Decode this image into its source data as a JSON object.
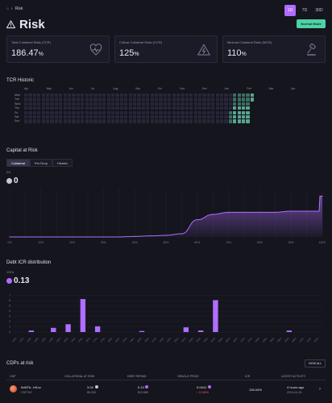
{
  "breadcrumb": {
    "label": "Risk"
  },
  "page": {
    "title": "Risk"
  },
  "time_range": {
    "options": [
      "1D",
      "7D",
      "30D"
    ],
    "selected": "1D"
  },
  "mode_badge": "Normal Mode",
  "stats": [
    {
      "label": "Total Collateral Ratio (TCR)",
      "value": "186.47",
      "unit": "%",
      "icon": "heart-pulse-icon"
    },
    {
      "label": "Critical Collateral Ratio (CCR)",
      "value": "125",
      "unit": "%",
      "icon": "warning-triangle-icon"
    },
    {
      "label": "Minimal Collateral Ratio (MCR)",
      "value": "110",
      "unit": "%",
      "icon": "gavel-icon"
    }
  ],
  "tcr_historic": {
    "title": "TCR Historic",
    "months": [
      "Apr",
      "May",
      "Jun",
      "Jul",
      "Aug",
      "Sep",
      "Oct",
      "Nov",
      "Dec",
      "Jan",
      "Feb",
      "Mar",
      "Apr"
    ],
    "days": [
      "Mon",
      "Tue",
      "Wed",
      "Thu",
      "Fri",
      "Sat",
      "Sun"
    ]
  },
  "capital_at_risk": {
    "title": "Capital at Risk",
    "tabs": [
      "Collateral",
      "Per Drop",
      "Historic"
    ],
    "selected_tab": "Collateral",
    "axis_note": "0%",
    "value": "0",
    "badge_color": "#c9c9d6"
  },
  "debt_icr": {
    "title": "Debt ICR distribution",
    "axis_note": "125%",
    "value": "0.13",
    "badge_color": "#b06dff"
  },
  "chart_data": [
    {
      "type": "area",
      "title": "Capital at Risk",
      "x": [
        "0%",
        "5%",
        "10%",
        "15%",
        "20%",
        "25%",
        "30%",
        "35%",
        "40%",
        "45%",
        "50%",
        "55%",
        "60%",
        "65%",
        "70%",
        "75%",
        "80%",
        "85%",
        "90%",
        "95%",
        "100%"
      ],
      "series": [
        {
          "values": [
            0,
            0,
            0,
            0,
            0,
            0,
            0,
            0,
            0.5,
            1,
            1.5,
            3,
            16,
            21,
            23,
            23,
            23,
            23,
            24,
            24,
            38
          ]
        }
      ],
      "ylim": [
        0,
        45
      ],
      "grid": true
    },
    {
      "type": "bar",
      "title": "Debt ICR distribution",
      "categories": [
        "115%",
        "120%",
        "125%",
        "130%",
        "135%",
        "140%",
        "145%",
        "150%",
        "155%",
        "160%",
        "165%",
        "170%",
        "175%",
        "180%",
        "185%",
        "190%",
        "195%",
        "200%",
        "205%",
        "210%",
        "215%",
        "220%",
        "225%",
        "230%",
        "235%",
        "240%",
        "245%",
        "250%",
        "255%",
        "260%",
        "265%",
        "270%",
        "275%",
        "280%",
        "285%",
        "290%",
        "295%",
        "300%",
        "305%",
        "310%",
        "315%",
        "320%"
      ],
      "values": [
        0,
        0,
        0.3,
        0,
        0,
        0.8,
        0,
        1.5,
        0,
        6.3,
        0,
        1.1,
        0,
        0,
        0,
        0,
        0,
        0.2,
        0,
        0,
        0,
        0,
        0,
        0.9,
        0,
        0.3,
        0,
        6.1,
        0,
        0,
        0,
        0,
        0,
        0,
        0,
        0,
        0,
        0.3,
        0,
        0,
        0,
        0
      ],
      "ylim": [
        0,
        8
      ],
      "yticks": [
        "0",
        "1",
        "2",
        "3",
        "4",
        "5",
        "6",
        "7"
      ],
      "grid": true
    }
  ],
  "cdps": {
    "title": "CDPs at risk",
    "view_all": "VIEW ALL",
    "columns": [
      "CDP",
      "COLLATERAL AT RISK",
      "DEBT REPAID",
      "ORACLE PRICE",
      "ICR",
      "LATEST ACTIVITY"
    ],
    "rows": [
      {
        "address": "0x6f7b...bf1cc",
        "sub": "CDP NO",
        "collateral": "3.04",
        "collateral_usd": "$6.53K",
        "debt": "0.13",
        "debt_usd": "$13.88K",
        "price": "0.0441",
        "price_change": "↓ 13.61%",
        "icr": "126.04%",
        "activity": "4 hours ago",
        "activity_date": "2024-04-28"
      }
    ]
  }
}
